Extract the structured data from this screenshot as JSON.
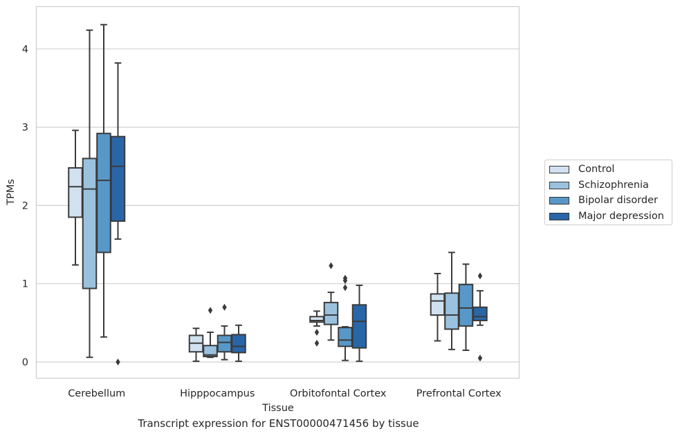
{
  "chart_data": {
    "type": "boxplot",
    "caption": "Transcript expression for ENST00000471456 by tissue",
    "xlabel": "Tissue",
    "ylabel": "TPMs",
    "ylim": [
      -0.21,
      4.55
    ],
    "yticks": [
      0,
      1,
      2,
      3,
      4
    ],
    "grid": "horizontal",
    "legend_position": "right",
    "categories": [
      "Cerebellum",
      "Hipppocampus",
      "Orbitofontal Cortex",
      "Prefrontal Cortex"
    ],
    "series": [
      {
        "name": "Control",
        "color": "#d1e1f0",
        "boxes": [
          {
            "whisker_low": 1.24,
            "q1": 1.85,
            "median": 2.24,
            "q3": 2.48,
            "whisker_high": 2.96,
            "outliers": []
          },
          {
            "whisker_low": 0.01,
            "q1": 0.13,
            "median": 0.24,
            "q3": 0.34,
            "whisker_high": 0.43,
            "outliers": []
          },
          {
            "whisker_low": 0.46,
            "q1": 0.51,
            "median": 0.53,
            "q3": 0.58,
            "whisker_high": 0.65,
            "outliers": [
              0.38,
              0.24
            ]
          },
          {
            "whisker_low": 0.27,
            "q1": 0.6,
            "median": 0.78,
            "q3": 0.87,
            "whisker_high": 1.13,
            "outliers": []
          }
        ]
      },
      {
        "name": "Schizophrenia",
        "color": "#9ac2de",
        "boxes": [
          {
            "whisker_low": 0.06,
            "q1": 0.94,
            "median": 2.21,
            "q3": 2.6,
            "whisker_high": 4.24,
            "outliers": []
          },
          {
            "whisker_low": 0.06,
            "q1": 0.07,
            "median": 0.09,
            "q3": 0.21,
            "whisker_high": 0.38,
            "outliers": [
              0.66
            ]
          },
          {
            "whisker_low": 0.28,
            "q1": 0.48,
            "median": 0.6,
            "q3": 0.76,
            "whisker_high": 0.89,
            "outliers": [
              1.23
            ]
          },
          {
            "whisker_low": 0.16,
            "q1": 0.42,
            "median": 0.6,
            "q3": 0.88,
            "whisker_high": 1.4,
            "outliers": []
          }
        ]
      },
      {
        "name": "Bipolar disorder",
        "color": "#5898c8",
        "boxes": [
          {
            "whisker_low": 0.32,
            "q1": 1.4,
            "median": 2.32,
            "q3": 2.92,
            "whisker_high": 4.31,
            "outliers": []
          },
          {
            "whisker_low": 0.03,
            "q1": 0.13,
            "median": 0.25,
            "q3": 0.34,
            "whisker_high": 0.46,
            "outliers": [
              0.7
            ]
          },
          {
            "whisker_low": 0.02,
            "q1": 0.2,
            "median": 0.28,
            "q3": 0.44,
            "whisker_high": 0.45,
            "outliers": [
              1.07,
              1.04,
              0.95
            ]
          },
          {
            "whisker_low": 0.15,
            "q1": 0.46,
            "median": 0.69,
            "q3": 0.99,
            "whisker_high": 1.25,
            "outliers": []
          }
        ]
      },
      {
        "name": "Major depression",
        "color": "#2966a8",
        "boxes": [
          {
            "whisker_low": 1.57,
            "q1": 1.8,
            "median": 2.5,
            "q3": 2.88,
            "whisker_high": 3.82,
            "outliers": [
              0.0
            ]
          },
          {
            "whisker_low": 0.01,
            "q1": 0.12,
            "median": 0.2,
            "q3": 0.35,
            "whisker_high": 0.47,
            "outliers": []
          },
          {
            "whisker_low": 0.01,
            "q1": 0.18,
            "median": 0.52,
            "q3": 0.73,
            "whisker_high": 0.98,
            "outliers": []
          },
          {
            "whisker_low": 0.47,
            "q1": 0.53,
            "median": 0.58,
            "q3": 0.7,
            "whisker_high": 0.91,
            "outliers": [
              1.1,
              0.05
            ]
          }
        ]
      }
    ]
  }
}
